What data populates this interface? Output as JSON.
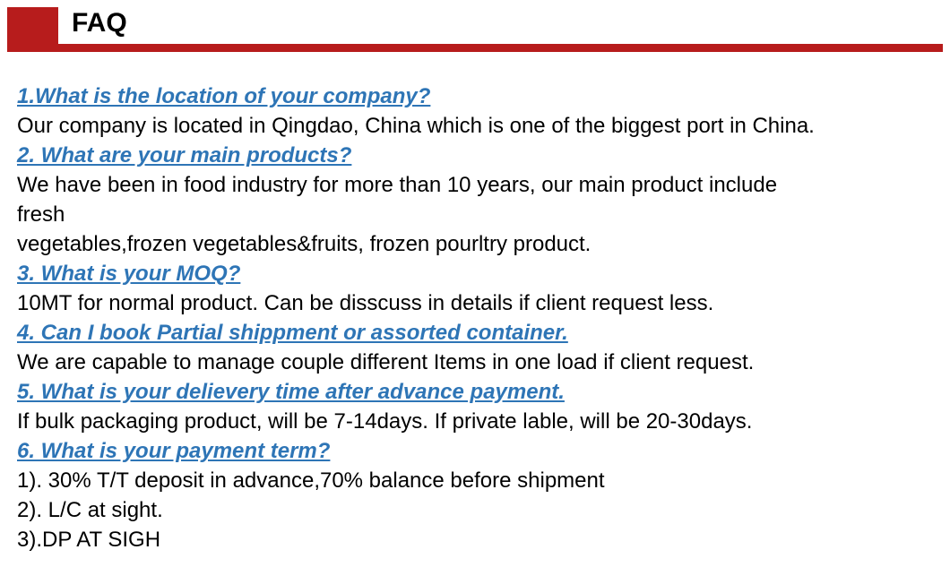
{
  "header": {
    "title": "FAQ",
    "accent_color": "#b71c1c"
  },
  "faq": [
    {
      "question": "1.What is the location of your company?",
      "answer": [
        "Our company is located in Qingdao, China which is one of the biggest port in China."
      ]
    },
    {
      "question": "2. What are your main products?",
      "answer": [
        "We have been in food industry for more than 10 years, our main product include",
        "fresh",
        "vegetables,frozen vegetables&fruits, frozen pourltry product."
      ]
    },
    {
      "question": "3. What is your MOQ?",
      "answer": [
        "10MT for normal product. Can be disscuss in details if client request less."
      ]
    },
    {
      "question": "4. Can I book Partial shippment or assorted container.",
      "answer": [
        "We are capable to manage couple different Items in one load if client request."
      ]
    },
    {
      "question": "5. What is your delievery time after advance payment.",
      "answer": [
        "If bulk packaging product, will be 7-14days. If private lable, will be 20-30days."
      ]
    },
    {
      "question": "6. What is your payment term?",
      "answer": [
        "1). 30% T/T deposit in advance,70% balance before shipment",
        "2). L/C at sight.",
        "3).DP AT SIGH"
      ]
    }
  ],
  "question_color": "#2e75b6"
}
